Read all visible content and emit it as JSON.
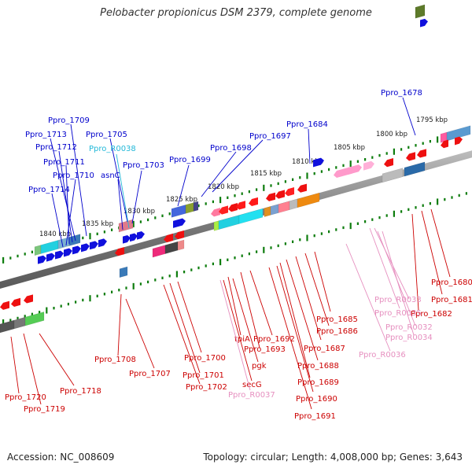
{
  "title": "Pelobacter propionicus DSM 2379, complete genome",
  "footer": {
    "accession": "Accession: NC_008609",
    "summary": "Topology: circular; Length: 4,008,000 bp; Genes: 3,643"
  },
  "colors": {
    "background": "#ffffff",
    "tick": "#0e7d0e",
    "scale_label": "#222222",
    "backbone": "#888888",
    "label_blue": "#0000cc",
    "label_red": "#cc0000",
    "label_cyan": "#22b8d8",
    "label_pink": "#e68fbf"
  },
  "scale_labels": [
    "1795 kbp",
    "1800 kbp",
    "1805 kbp",
    "1810 kbp",
    "1815 kbp",
    "1820 kbp",
    "1825 kbp",
    "1830 kbp",
    "1835 kbp",
    "1840 kbp"
  ],
  "gene_labels": {
    "top": [
      {
        "text": "Ppro_1678",
        "color": "blue"
      },
      {
        "text": "Ppro_1684",
        "color": "blue"
      },
      {
        "text": "Ppro_1697",
        "color": "blue"
      },
      {
        "text": "Ppro_1698",
        "color": "blue"
      },
      {
        "text": "Ppro_1699",
        "color": "blue"
      },
      {
        "text": "Ppro_1703",
        "color": "blue"
      },
      {
        "text": "Ppro_1705",
        "color": "blue"
      },
      {
        "text": "Ppro_R0038",
        "color": "cyan"
      },
      {
        "text": "asnC",
        "color": "blue"
      },
      {
        "text": "Ppro_1709",
        "color": "blue"
      },
      {
        "text": "Ppro_1713",
        "color": "blue"
      },
      {
        "text": "Ppro_1712",
        "color": "blue"
      },
      {
        "text": "Ppro_1711",
        "color": "blue"
      },
      {
        "text": "Ppro_1710",
        "color": "blue"
      },
      {
        "text": "Ppro_1714",
        "color": "blue"
      }
    ],
    "bottom": [
      {
        "text": "Ppro_1680",
        "color": "red"
      },
      {
        "text": "Ppro_1681",
        "color": "red"
      },
      {
        "text": "Ppro_1682",
        "color": "red"
      },
      {
        "text": "Ppro_R0033",
        "color": "pink"
      },
      {
        "text": "Ppro_R0035",
        "color": "pink"
      },
      {
        "text": "Ppro_R0032",
        "color": "pink"
      },
      {
        "text": "Ppro_R0034",
        "color": "pink"
      },
      {
        "text": "Ppro_R0036",
        "color": "pink"
      },
      {
        "text": "Ppro_1685",
        "color": "red"
      },
      {
        "text": "Ppro_1686",
        "color": "red"
      },
      {
        "text": "Ppro_1687",
        "color": "red"
      },
      {
        "text": "Ppro_1688",
        "color": "red"
      },
      {
        "text": "Ppro_1689",
        "color": "red"
      },
      {
        "text": "Ppro_1690",
        "color": "red"
      },
      {
        "text": "Ppro_1691",
        "color": "red"
      },
      {
        "text": "Ppro_1692",
        "color": "red"
      },
      {
        "text": "Ppro_1693",
        "color": "red"
      },
      {
        "text": "tpiA",
        "color": "red"
      },
      {
        "text": "pgk",
        "color": "red"
      },
      {
        "text": "secG",
        "color": "red"
      },
      {
        "text": "Ppro_R0037",
        "color": "pink"
      },
      {
        "text": "Ppro_1700",
        "color": "red"
      },
      {
        "text": "Ppro_1701",
        "color": "red"
      },
      {
        "text": "Ppro_1702",
        "color": "red"
      },
      {
        "text": "Ppro_1707",
        "color": "red"
      },
      {
        "text": "Ppro_1708",
        "color": "red"
      },
      {
        "text": "Ppro_1718",
        "color": "red"
      },
      {
        "text": "Ppro_1719",
        "color": "red"
      },
      {
        "text": "Ppro_1720",
        "color": "red"
      }
    ]
  }
}
